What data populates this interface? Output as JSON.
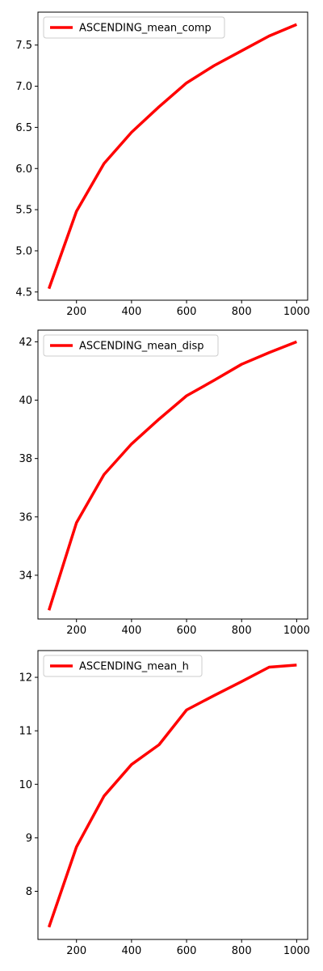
{
  "chart_data": [
    {
      "type": "line",
      "x": [
        100,
        200,
        300,
        400,
        500,
        600,
        700,
        800,
        900,
        1000
      ],
      "series": [
        {
          "name": "ASCENDING_mean_comp",
          "color": "#ff0000",
          "values": [
            4.54,
            5.48,
            6.06,
            6.44,
            6.75,
            7.04,
            7.25,
            7.43,
            7.61,
            7.75
          ]
        }
      ],
      "xlim": [
        60,
        1040
      ],
      "ylim": [
        4.4,
        7.9
      ],
      "xticks": [
        200,
        400,
        600,
        800,
        1000
      ],
      "yticks": [
        4.5,
        5.0,
        5.5,
        6.0,
        6.5,
        7.0,
        7.5
      ],
      "ytick_labels": [
        "4.5",
        "5.0",
        "5.5",
        "6.0",
        "6.5",
        "7.0",
        "7.5"
      ],
      "title": "",
      "xlabel": "",
      "ylabel": "",
      "grid": false,
      "legend": "upper-left"
    },
    {
      "type": "line",
      "x": [
        100,
        200,
        300,
        400,
        500,
        600,
        700,
        800,
        900,
        1000
      ],
      "series": [
        {
          "name": "ASCENDING_mean_disp",
          "color": "#ff0000",
          "values": [
            32.8,
            35.8,
            37.45,
            38.5,
            39.35,
            40.15,
            40.68,
            41.23,
            41.63,
            42.0
          ]
        }
      ],
      "xlim": [
        60,
        1040
      ],
      "ylim": [
        32.5,
        42.4
      ],
      "xticks": [
        200,
        400,
        600,
        800,
        1000
      ],
      "yticks": [
        34,
        36,
        38,
        40,
        42
      ],
      "ytick_labels": [
        "34",
        "36",
        "38",
        "40",
        "42"
      ],
      "title": "",
      "xlabel": "",
      "ylabel": "",
      "grid": false,
      "legend": "upper-left"
    },
    {
      "type": "line",
      "x": [
        100,
        200,
        300,
        400,
        500,
        600,
        700,
        800,
        900,
        1000
      ],
      "series": [
        {
          "name": "ASCENDING_mean_h",
          "color": "#ff0000",
          "values": [
            7.33,
            8.83,
            9.78,
            10.37,
            10.74,
            11.39,
            11.66,
            11.92,
            12.19,
            12.23
          ]
        }
      ],
      "xlim": [
        60,
        1040
      ],
      "ylim": [
        7.1,
        12.5
      ],
      "xticks": [
        200,
        400,
        600,
        800,
        1000
      ],
      "yticks": [
        8,
        9,
        10,
        11,
        12
      ],
      "ytick_labels": [
        "8",
        "9",
        "10",
        "11",
        "12"
      ],
      "title": "",
      "xlabel": "",
      "ylabel": "",
      "grid": false,
      "legend": "upper-left"
    }
  ]
}
